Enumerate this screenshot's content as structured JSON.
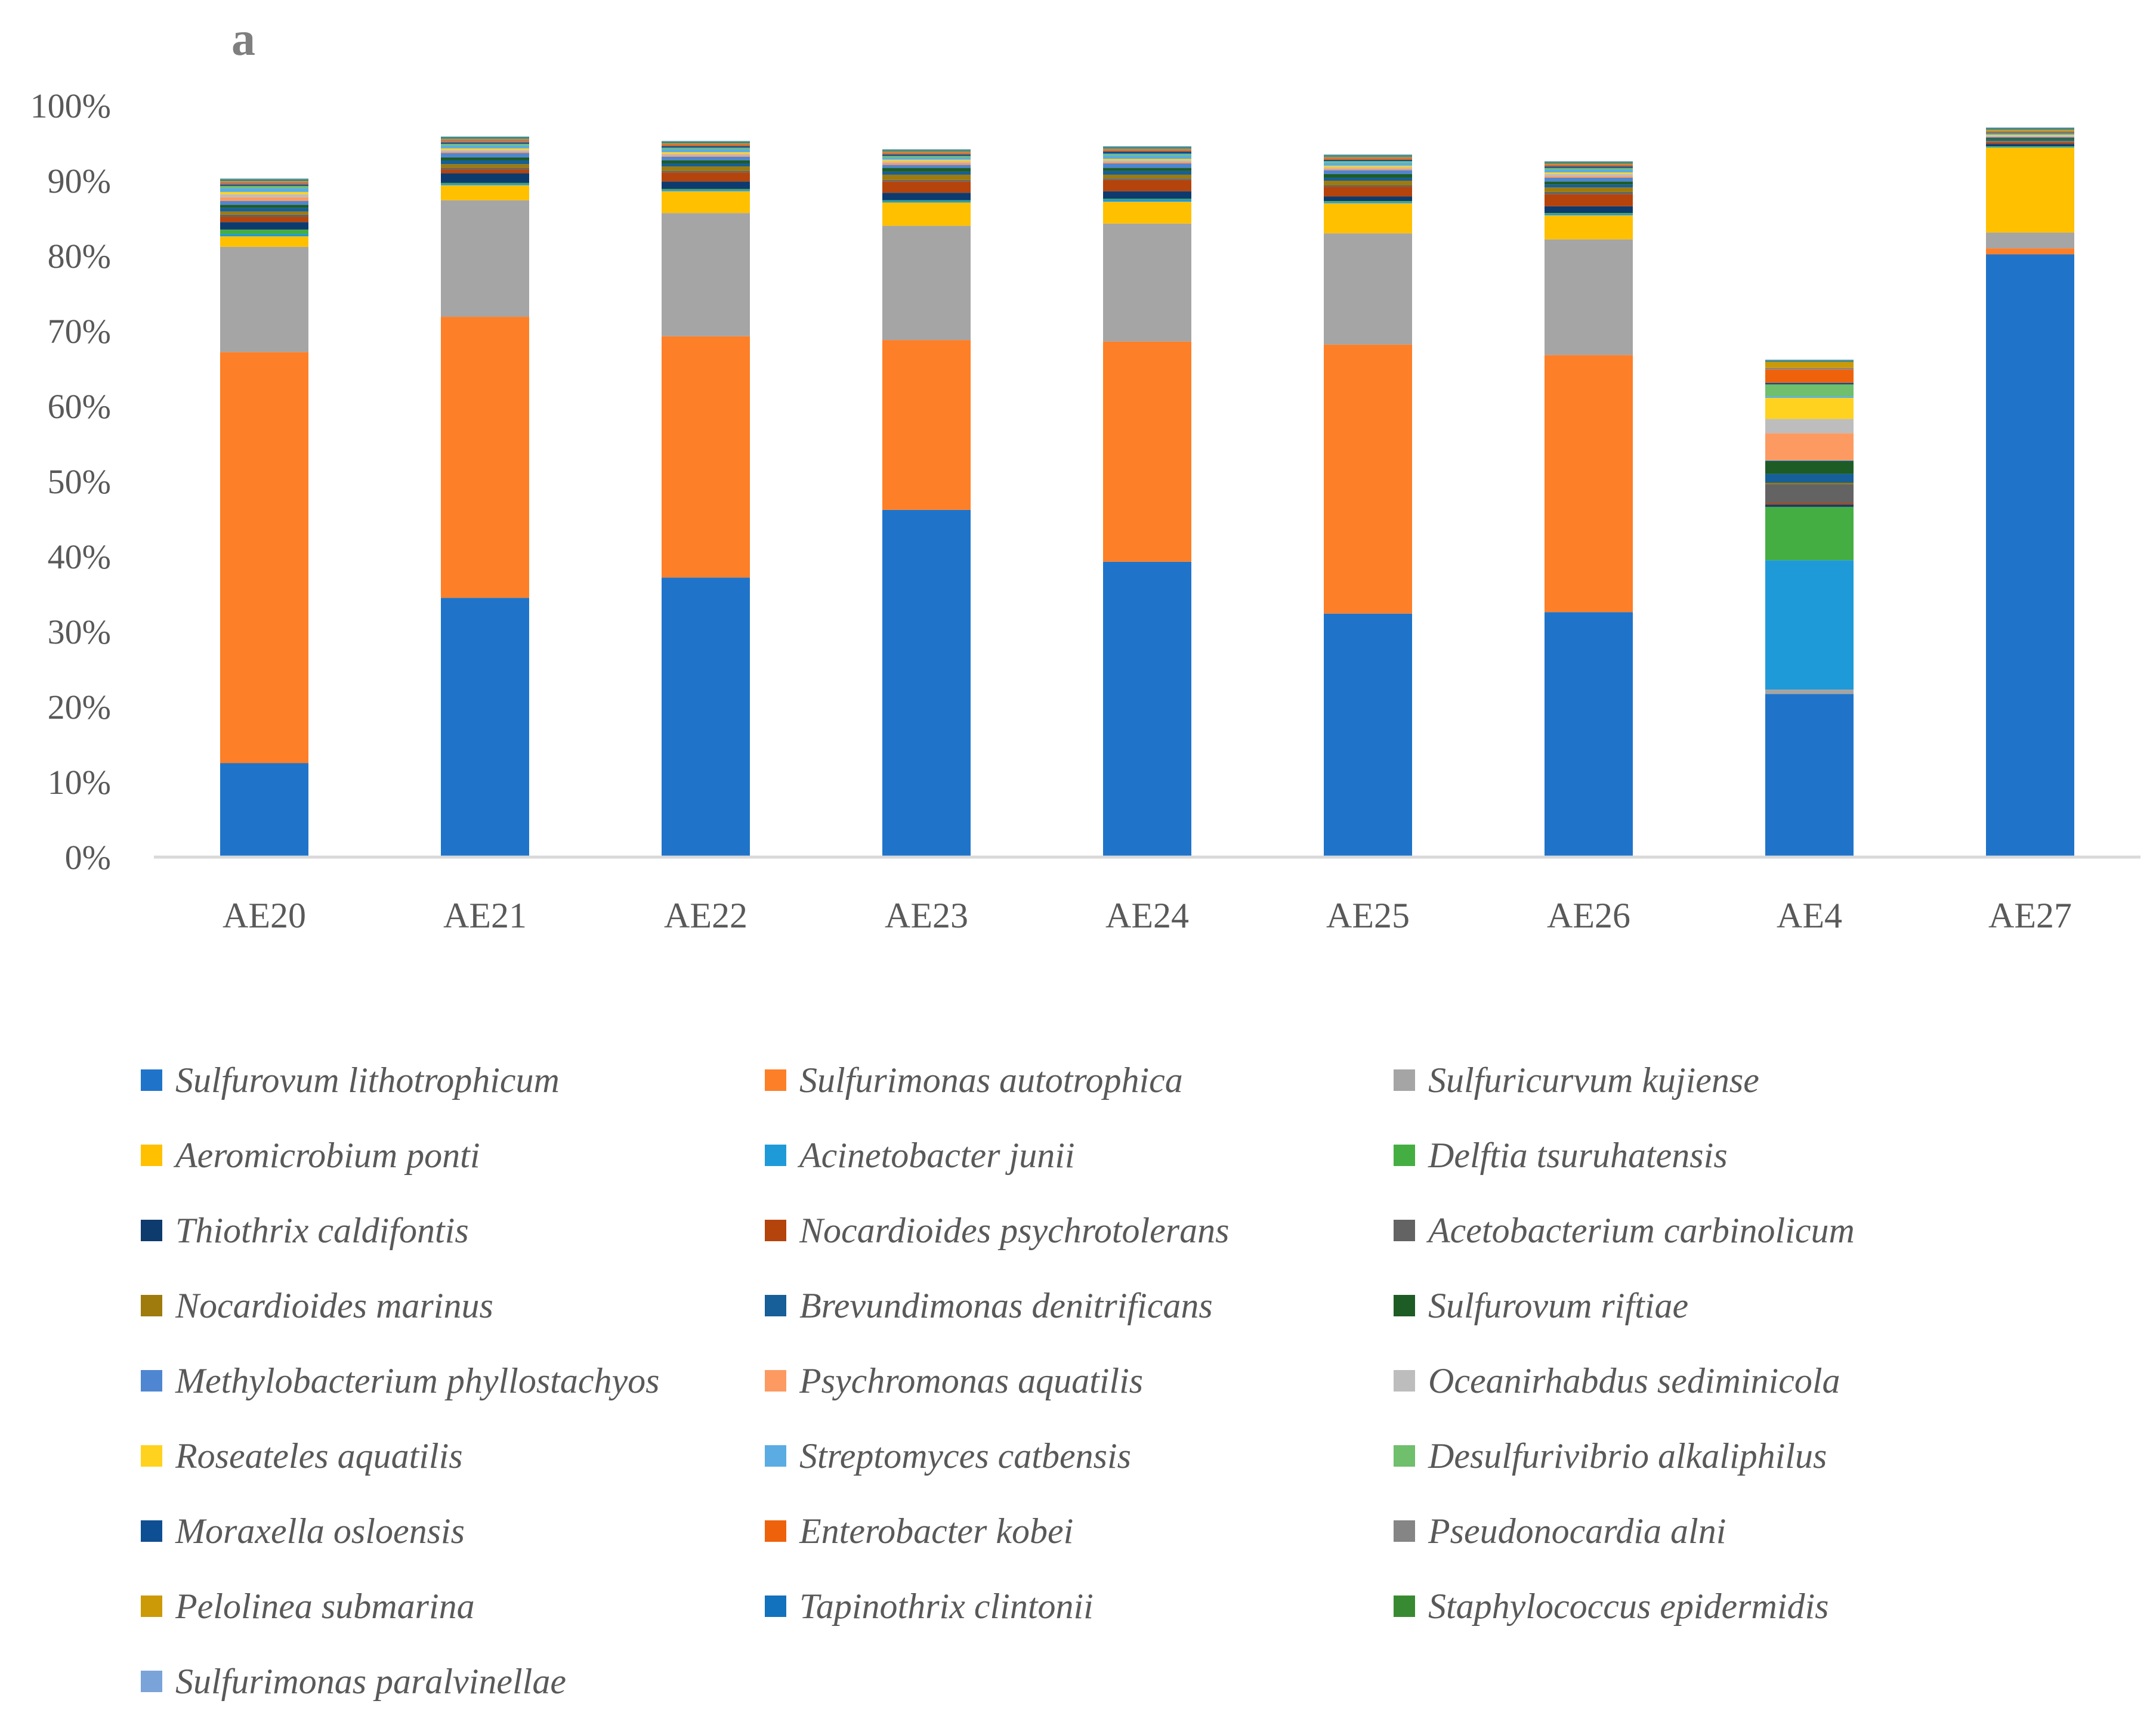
{
  "chart_data": {
    "type": "bar",
    "stacked": true,
    "title": "",
    "panel_label": "a",
    "xlabel": "",
    "ylabel": "",
    "ylim": [
      0,
      100
    ],
    "y_ticks": [
      "0%",
      "10%",
      "20%",
      "30%",
      "40%",
      "50%",
      "60%",
      "70%",
      "80%",
      "90%",
      "100%"
    ],
    "grid": false,
    "legend_position": "bottom",
    "categories": [
      "AE20",
      "AE21",
      "AE22",
      "AE23",
      "AE24",
      "AE25",
      "AE26",
      "AE4",
      "AE27"
    ],
    "series": [
      {
        "name": "Sulfurovum lithotrophicum",
        "color": "#1f74c9",
        "values": [
          12.5,
          34.5,
          37.2,
          46.2,
          39.3,
          32.4,
          32.6,
          21.7,
          80.2
        ]
      },
      {
        "name": "Sulfurimonas autotrophica",
        "color": "#fd7f28",
        "values": [
          54.7,
          37.4,
          32.1,
          22.6,
          29.3,
          35.8,
          34.2,
          0.0,
          0.8
        ]
      },
      {
        "name": "Sulfuricurvum kujiense",
        "color": "#a5a5a5",
        "values": [
          14.0,
          15.5,
          16.4,
          15.2,
          15.7,
          14.8,
          15.4,
          0.6,
          2.1
        ]
      },
      {
        "name": "Aeromicrobium ponti",
        "color": "#ffc000",
        "values": [
          1.4,
          2.0,
          2.9,
          3.1,
          2.9,
          4.0,
          3.2,
          0.0,
          11.3
        ]
      },
      {
        "name": "Acinetobacter junii",
        "color": "#1f9ad9",
        "values": [
          0.3,
          0.2,
          0.2,
          0.2,
          0.3,
          0.2,
          0.2,
          17.2,
          0.1
        ]
      },
      {
        "name": "Delftia tsuruhatensis",
        "color": "#45ae42",
        "values": [
          0.6,
          0.1,
          0.1,
          0.1,
          0.1,
          0.1,
          0.1,
          7.1,
          0.1
        ]
      },
      {
        "name": "Thiothrix caldifontis",
        "color": "#0e3b6e",
        "values": [
          1.0,
          1.3,
          1.0,
          1.0,
          1.0,
          0.6,
          0.9,
          0.3,
          0.3
        ]
      },
      {
        "name": "Nocardioides psychrotolerans",
        "color": "#b5430c",
        "values": [
          0.7,
          0.5,
          1.2,
          1.5,
          1.5,
          1.3,
          1.6,
          0.2,
          0.2
        ]
      },
      {
        "name": "Acetobacterium carbinolicum",
        "color": "#636363",
        "values": [
          0.3,
          0.2,
          0.2,
          0.2,
          0.2,
          0.2,
          0.3,
          2.5,
          0.1
        ]
      },
      {
        "name": "Nocardioides marinus",
        "color": "#9e7b0c",
        "values": [
          0.4,
          0.5,
          0.6,
          0.7,
          0.5,
          0.6,
          0.6,
          0.2,
          0.1
        ]
      },
      {
        "name": "Brevundimonas denitrificans",
        "color": "#165f98",
        "values": [
          0.5,
          0.5,
          0.4,
          0.4,
          0.5,
          0.4,
          0.4,
          1.2,
          0.2
        ]
      },
      {
        "name": "Sulfurovum riftiae",
        "color": "#1e5c26",
        "values": [
          0.4,
          0.4,
          0.4,
          0.5,
          0.4,
          0.5,
          0.4,
          1.7,
          0.2
        ]
      },
      {
        "name": "Methylobacterium phyllostachyos",
        "color": "#4f86d1",
        "values": [
          0.5,
          0.6,
          0.5,
          0.4,
          0.6,
          0.5,
          0.5,
          0.1,
          0.1
        ]
      },
      {
        "name": "Psychromonas aquatilis",
        "color": "#fd9a61",
        "values": [
          0.5,
          0.2,
          0.2,
          0.3,
          0.2,
          0.2,
          0.2,
          3.6,
          0.1
        ]
      },
      {
        "name": "Oceanirhabdus sediminicola",
        "color": "#bdbdbd",
        "values": [
          0.4,
          0.2,
          0.2,
          0.2,
          0.2,
          0.2,
          0.3,
          1.9,
          0.1
        ]
      },
      {
        "name": "Roseateles aquatilis",
        "color": "#ffd21f",
        "values": [
          0.3,
          0.2,
          0.2,
          0.2,
          0.2,
          0.2,
          0.2,
          2.8,
          0.1
        ]
      },
      {
        "name": "Streptomyces catbensis",
        "color": "#5aace3",
        "values": [
          0.5,
          0.4,
          0.4,
          0.3,
          0.5,
          0.4,
          0.4,
          0.2,
          0.1
        ]
      },
      {
        "name": "Desulfurivibrio alkaliphilus",
        "color": "#6fbf6c",
        "values": [
          0.3,
          0.2,
          0.2,
          0.2,
          0.2,
          0.2,
          0.2,
          1.6,
          0.1
        ]
      },
      {
        "name": "Moraxella osloensis",
        "color": "#0e4f93",
        "values": [
          0.2,
          0.2,
          0.2,
          0.2,
          0.3,
          0.2,
          0.2,
          0.2,
          0.1
        ]
      },
      {
        "name": "Enterobacter kobei",
        "color": "#ef620c",
        "values": [
          0.2,
          0.2,
          0.2,
          0.2,
          0.2,
          0.2,
          0.2,
          1.8,
          0.1
        ]
      },
      {
        "name": "Pseudonocardia alni",
        "color": "#858585",
        "values": [
          0.2,
          0.2,
          0.1,
          0.1,
          0.1,
          0.1,
          0.1,
          0.2,
          0.1
        ]
      },
      {
        "name": "Pelolinea submarina",
        "color": "#cc9a06",
        "values": [
          0.1,
          0.1,
          0.1,
          0.1,
          0.1,
          0.1,
          0.1,
          0.8,
          0.2
        ]
      },
      {
        "name": "Tapinothrix clintonii",
        "color": "#1372bd",
        "values": [
          0.1,
          0.1,
          0.1,
          0.1,
          0.1,
          0.1,
          0.1,
          0.1,
          0.1
        ]
      },
      {
        "name": "Staphylococcus epidermidis",
        "color": "#388a32",
        "values": [
          0.1,
          0.1,
          0.1,
          0.1,
          0.1,
          0.1,
          0.1,
          0.1,
          0.1
        ]
      },
      {
        "name": "Sulfurimonas paralvinellae",
        "color": "#7aa3da",
        "values": [
          0.1,
          0.1,
          0.1,
          0.1,
          0.1,
          0.1,
          0.1,
          0.1,
          0.1
        ]
      }
    ]
  }
}
